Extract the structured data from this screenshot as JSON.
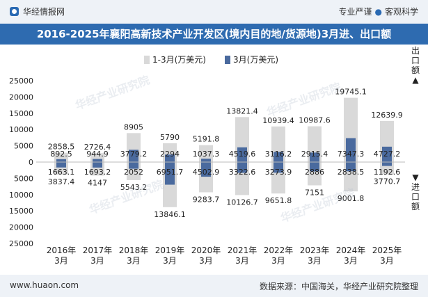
{
  "header": {
    "brand": "华经情报网",
    "tagline_left": "专业严谨",
    "tagline_right": "客观科学"
  },
  "title": "2016-2025年襄阳高新技术产业开发区(境内目的地/货源地)3月进、出口额",
  "legend": {
    "cumulative": "1-3月(万美元)",
    "monthly": "3月(万美元)"
  },
  "side_labels": {
    "export": [
      "出",
      "口",
      "额",
      "▲"
    ],
    "import": [
      "▼",
      "进",
      "口",
      "额"
    ]
  },
  "footer": {
    "website": "www.huaon.com",
    "source": "数据来源：中国海关，华经产业研究院整理"
  },
  "watermark": "华经产业研究院",
  "colors": {
    "cumulative": "#d9d9d9",
    "monthly": "#4a6a9e",
    "title_bg": "#2e6bb0",
    "bar_bg": "#eef2f7"
  },
  "chart_data": {
    "type": "bar",
    "categories": [
      "2016年\n3月",
      "2017年\n3月",
      "2018年\n3月",
      "2019年\n3月",
      "2020年\n3月",
      "2021年\n3月",
      "2022年\n3月",
      "2023年\n3月",
      "2024年\n3月",
      "2025年\n3月"
    ],
    "series": [
      {
        "name": "1-3月出口额(万美元)",
        "values": [
          2858.5,
          2726.4,
          8905,
          5790,
          5191.8,
          13821.4,
          10939.4,
          10987.6,
          19745.1,
          12639.9
        ]
      },
      {
        "name": "3月出口额(万美元)",
        "values": [
          892.5,
          944.9,
          3779.2,
          2294,
          1037.3,
          4519.6,
          3116.2,
          2915.4,
          7347.3,
          4727.2
        ]
      },
      {
        "name": "1-3月进口额(万美元)",
        "values": [
          3837.4,
          4147,
          5543.2,
          13846.1,
          9283.7,
          10126.7,
          9651.8,
          7151,
          9001.8,
          3770.7
        ]
      },
      {
        "name": "3月进口额(万美元)",
        "values": [
          1663.1,
          1693.2,
          2052,
          6951.7,
          4502.9,
          3322.6,
          3273.9,
          2886,
          2838.5,
          1192.6
        ]
      }
    ],
    "yticks": [
      "25000",
      "20000",
      "15000",
      "10000",
      "5000",
      "0",
      "5000",
      "10000",
      "15000",
      "20000",
      "25000"
    ],
    "ylim": [
      -25000,
      25000
    ],
    "title": "2016-2025年襄阳高新技术产业开发区(境内目的地/货源地)3月进、出口额",
    "xlabel": "",
    "ylabel": ""
  }
}
